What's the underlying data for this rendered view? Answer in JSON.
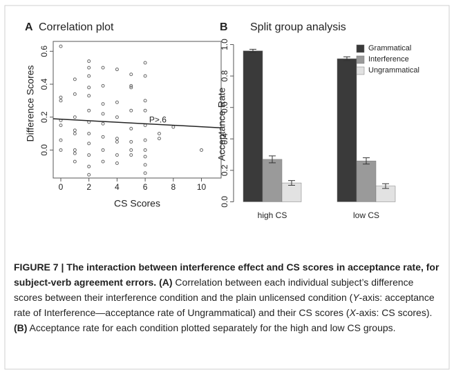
{
  "chart_data": [
    {
      "type": "scatter",
      "panel": "A",
      "title": "Correlation plot",
      "x_label": "CS Scores",
      "y_label": "Difference Scores",
      "x": [
        0,
        0,
        0,
        0,
        0,
        0,
        0,
        1,
        1,
        1,
        1,
        1,
        1,
        1,
        1,
        2,
        2,
        2,
        2,
        2,
        2,
        2,
        2,
        2,
        2,
        2,
        2,
        3,
        3,
        3,
        3,
        3,
        3,
        3,
        3,
        4,
        4,
        4,
        4,
        4,
        4,
        4,
        5,
        5,
        5,
        5,
        5,
        5,
        5,
        5,
        6,
        6,
        6,
        6,
        6,
        6,
        6,
        6,
        6,
        6,
        7,
        7,
        8,
        10
      ],
      "y": [
        0.63,
        0.32,
        0.3,
        0.18,
        0.15,
        0.06,
        0.0,
        0.43,
        0.34,
        0.2,
        0.12,
        0.1,
        0.0,
        -0.02,
        -0.07,
        0.54,
        0.5,
        0.45,
        0.38,
        0.33,
        0.24,
        0.17,
        0.1,
        0.04,
        -0.03,
        -0.1,
        -0.15,
        0.5,
        0.39,
        0.28,
        0.22,
        0.16,
        0.08,
        0.0,
        -0.07,
        0.49,
        0.29,
        0.2,
        0.07,
        0.05,
        -0.03,
        -0.08,
        0.46,
        0.39,
        0.38,
        0.24,
        0.13,
        0.05,
        0.0,
        -0.03,
        0.53,
        0.45,
        0.3,
        0.24,
        0.15,
        0.06,
        0.0,
        -0.04,
        -0.09,
        -0.14,
        0.1,
        0.07,
        0.14,
        0.0
      ],
      "color": "#666666",
      "fit": {
        "x": [
          -0.54,
          11.4
        ],
        "y": [
          0.19,
          0.135
        ]
      },
      "annotation": {
        "text": "P>.6",
        "x": 6.9,
        "y": 0.18
      },
      "xlim": [
        -0.54,
        11.4
      ],
      "ylim": [
        -0.17,
        0.66
      ],
      "xticks": [
        0,
        2,
        4,
        6,
        8,
        10
      ],
      "yticks": [
        {
          "value": 0,
          "label": "0.0"
        },
        0.2,
        0.4,
        0.6
      ]
    },
    {
      "type": "bar",
      "panel": "B",
      "title": "Split group analysis",
      "y_label": "Acceptance Rate",
      "categories": [
        "high CS",
        "low CS"
      ],
      "series": [
        {
          "name": "Grammatical",
          "color": "#3a3a3a",
          "values": [
            0.96,
            0.91
          ],
          "errors": [
            0.01,
            0.012
          ]
        },
        {
          "name": "Interference",
          "color": "#9a9a9a",
          "values": [
            0.27,
            0.26
          ],
          "errors": [
            0.022,
            0.02
          ]
        },
        {
          "name": "Ungrammatical",
          "color": "#e2e2e2",
          "values": [
            0.12,
            0.1
          ],
          "errors": [
            0.015,
            0.015
          ]
        }
      ],
      "legend": "top-right",
      "ylim": [
        -0.02,
        1.02
      ],
      "yticks": [
        {
          "value": 0,
          "label": "0.0"
        },
        0.2,
        0.4,
        0.6,
        0.8,
        {
          "value": 1,
          "label": "1.0"
        }
      ]
    }
  ],
  "caption": {
    "segments": [
      {
        "text": "FIGURE 7 | The interaction between interference effect and CS scores in acceptance rate, for subject-verb agreement errors.",
        "style": "bold"
      },
      {
        "text": " ",
        "style": "normal"
      },
      {
        "text": "(A)",
        "style": "bold"
      },
      {
        "text": " Correlation between each individual subject’s difference scores between their interference condition and the plain unlicensed condition (",
        "style": "normal"
      },
      {
        "text": "Y",
        "style": "italic"
      },
      {
        "text": "-axis: acceptance rate of Interference—acceptance rate of Ungrammatical) and their CS scores (",
        "style": "normal"
      },
      {
        "text": "X",
        "style": "italic"
      },
      {
        "text": "-axis: CS scores).",
        "style": "normal"
      },
      {
        "text": " ",
        "style": "normal"
      },
      {
        "text": "(B)",
        "style": "bold"
      },
      {
        "text": " Acceptance rate for each condition plotted separately for the high and low CS groups.",
        "style": "normal"
      }
    ]
  }
}
